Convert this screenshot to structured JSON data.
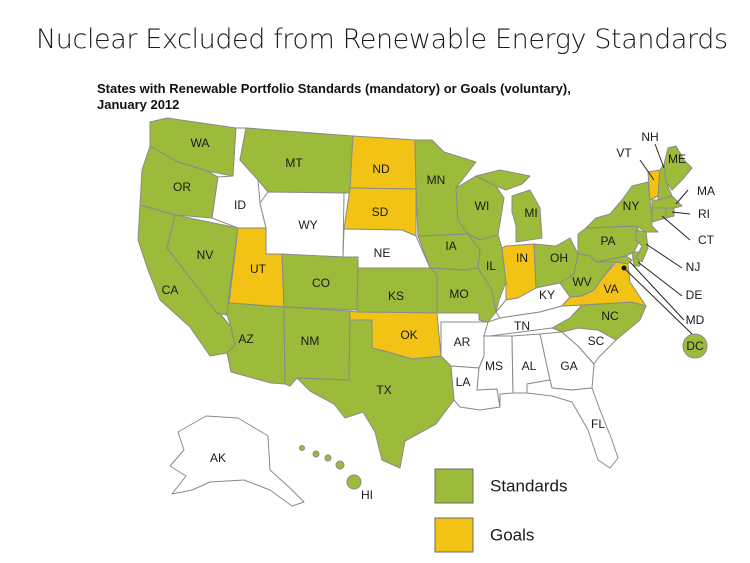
{
  "slide_title": "Nuclear Excluded from Renewable Energy Standards",
  "map_title_line1": "States with Renewable Portfolio Standards (mandatory) or Goals (voluntary),",
  "map_title_line2": "January 2012",
  "colors": {
    "standards": "#9dbb3b",
    "goals": "#f2c314",
    "none": "#ffffff",
    "border": "#8a8a8a"
  },
  "legend": {
    "standards_label": "Standards",
    "goals_label": "Goals"
  },
  "states": {
    "WA": "standards",
    "OR": "standards",
    "CA": "standards",
    "NV": "standards",
    "ID": "none",
    "MT": "standards",
    "WY": "none",
    "UT": "goals",
    "AZ": "standards",
    "CO": "standards",
    "NM": "standards",
    "ND": "goals",
    "SD": "goals",
    "NE": "none",
    "KS": "standards",
    "OK": "goals",
    "TX": "standards",
    "MN": "standards",
    "IA": "standards",
    "MO": "standards",
    "AR": "none",
    "LA": "none",
    "WI": "standards",
    "IL": "standards",
    "MI": "standards",
    "IN": "goals",
    "OH": "standards",
    "KY": "none",
    "TN": "none",
    "MS": "none",
    "AL": "none",
    "GA": "none",
    "FL": "none",
    "SC": "none",
    "NC": "standards",
    "VA": "goals",
    "WV": "standards",
    "PA": "standards",
    "NY": "standards",
    "VT": "goals",
    "NH": "standards",
    "ME": "standards",
    "MA": "standards",
    "RI": "standards",
    "CT": "standards",
    "NJ": "standards",
    "DE": "standards",
    "MD": "standards",
    "DC": "standards",
    "AK": "none",
    "HI": "standards"
  },
  "labels": {
    "WA": "WA",
    "OR": "OR",
    "CA": "CA",
    "NV": "NV",
    "ID": "ID",
    "MT": "MT",
    "WY": "WY",
    "UT": "UT",
    "AZ": "AZ",
    "CO": "CO",
    "NM": "NM",
    "ND": "ND",
    "SD": "SD",
    "NE": "NE",
    "KS": "KS",
    "OK": "OK",
    "TX": "TX",
    "MN": "MN",
    "IA": "IA",
    "MO": "MO",
    "AR": "AR",
    "LA": "LA",
    "WI": "WI",
    "IL": "IL",
    "MI": "MI",
    "IN": "IN",
    "OH": "OH",
    "KY": "KY",
    "TN": "TN",
    "MS": "MS",
    "AL": "AL",
    "GA": "GA",
    "FL": "FL",
    "SC": "SC",
    "NC": "NC",
    "VA": "VA",
    "WV": "WV",
    "PA": "PA",
    "NY": "NY",
    "VT": "VT",
    "NH": "NH",
    "ME": "ME",
    "MA": "MA",
    "RI": "RI",
    "CT": "CT",
    "NJ": "NJ",
    "DE": "DE",
    "MD": "MD",
    "DC": "DC",
    "AK": "AK",
    "HI": "HI"
  }
}
